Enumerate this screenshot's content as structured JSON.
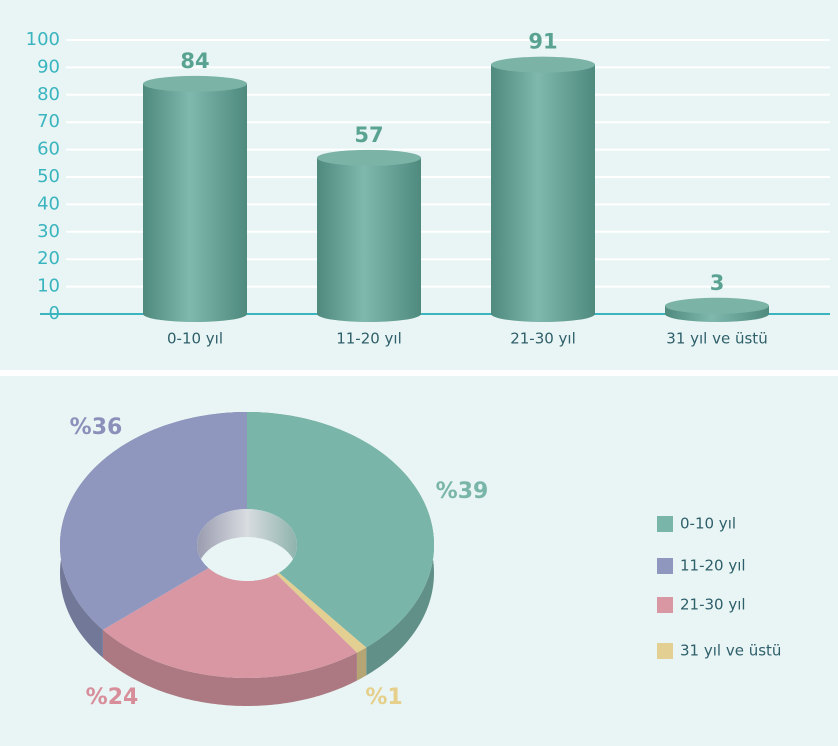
{
  "chart_data": [
    {
      "type": "bar",
      "categories": [
        "0-10 yıl",
        "11-20 yıl",
        "21-30 yıl",
        "31 yıl ve üstü"
      ],
      "values": [
        84,
        57,
        91,
        3
      ],
      "color": "#6aa597",
      "ylim": [
        0,
        100
      ],
      "yticks": [
        0,
        10,
        20,
        30,
        40,
        50,
        60,
        70,
        80,
        90,
        100
      ],
      "grid": true
    },
    {
      "type": "pie",
      "categories": [
        "0-10 yıl",
        "11-20 yıl",
        "21-30 yıl",
        "31 yıl ve üstü"
      ],
      "values": [
        39,
        36,
        24,
        1
      ],
      "value_labels": [
        "%39",
        "%36",
        "%24",
        "%1"
      ],
      "colors": [
        "#7ab5aa",
        "#8f97bf",
        "#d897a2",
        "#e3cf91"
      ],
      "legend": "right"
    }
  ]
}
